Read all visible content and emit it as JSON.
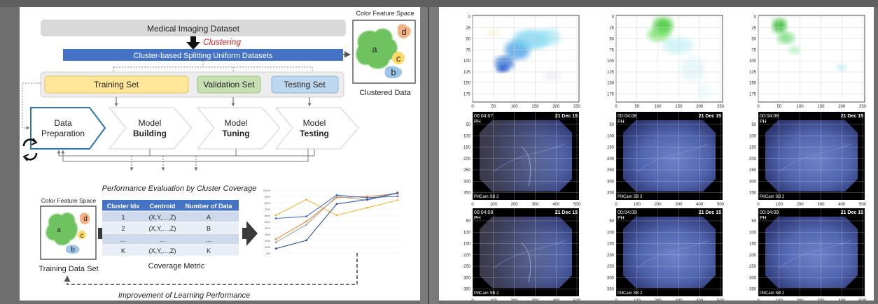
{
  "pipeline": {
    "dataset_label": "Medical Imaging Dataset",
    "clustering_label": "Clustering",
    "split_label": "Cluster-based Splitting Uniform Datasets",
    "training_set": "Training Set",
    "validation_set": "Validation Set",
    "testing_set": "Testing Set",
    "stages": [
      {
        "line1": "Data",
        "line2": "Preparation"
      },
      {
        "line1": "Model",
        "line2": "Building"
      },
      {
        "line1": "Model",
        "line2": "Tuning"
      },
      {
        "line1": "Model",
        "line2": "Testing"
      }
    ],
    "performance_label": "Performance Evaluation by Cluster Coverage",
    "improvement_label": "Improvement of Learning Performance"
  },
  "color_space_top": {
    "title": "Color Feature Space",
    "caption": "Clustered Data",
    "clusters": [
      "a",
      "b",
      "c",
      "d"
    ]
  },
  "color_space_bottom": {
    "title": "Color Feature Space",
    "caption": "Training Data Set",
    "clusters": [
      "a",
      "b",
      "c",
      "d"
    ]
  },
  "coverage_table": {
    "headers": [
      "Cluster Idx",
      "Centroid",
      "Number of Data"
    ],
    "rows": [
      [
        "1",
        "(X,Y,…,Z)",
        "A"
      ],
      [
        "2",
        "(X,Y,…,Z)",
        "B"
      ],
      [
        "…",
        "…",
        "…"
      ],
      [
        "K",
        "(X,Y,…,Z)",
        "K"
      ]
    ],
    "caption": "Coverage Metric"
  },
  "chart_data": {
    "type": "line",
    "title": "",
    "xlabel": "",
    "ylabel": "",
    "x": [
      1,
      2,
      3,
      4,
      5
    ],
    "ylim": [
      0,
      100
    ],
    "yticks": [
      "0%",
      "10%",
      "20%",
      "30%",
      "40%",
      "50%",
      "60%",
      "70%",
      "80%",
      "90%",
      "100%"
    ],
    "series": [
      {
        "color": "#f6b73c",
        "values": [
          60,
          85,
          60,
          72,
          84
        ]
      },
      {
        "color": "#ef8b3a",
        "values": [
          22,
          50,
          88,
          90,
          94
        ]
      },
      {
        "color": "#a5a5a5",
        "values": [
          17,
          45,
          90,
          84,
          95
        ]
      },
      {
        "color": "#4472c4",
        "values": [
          55,
          58,
          92,
          88,
          90
        ]
      },
      {
        "color": "#2f5597",
        "values": [
          7,
          20,
          78,
          85,
          96
        ]
      }
    ]
  },
  "plots": {
    "scatter_yticks": [
      "0",
      "25",
      "50",
      "75",
      "100",
      "125",
      "150",
      "175"
    ],
    "scatter_xticks": [
      "0",
      "50",
      "100",
      "150",
      "200",
      "250"
    ],
    "image_yticks": [
      "50",
      "100",
      "150",
      "200",
      "250",
      "300",
      "350"
    ],
    "image_xticks": [
      "0",
      "100",
      "200",
      "300",
      "400",
      "500"
    ],
    "image_frames": [
      {
        "time": "00:04:07",
        "date": "21 Dec 15",
        "tag": "PH",
        "brand": "PillCam SB 2"
      },
      {
        "time": "00:04:08",
        "date": "21 Dec 15",
        "tag": "PH",
        "brand": "PillCam SB 2"
      },
      {
        "time": "00:04:08",
        "date": "21 Dec 15",
        "tag": "PH",
        "brand": "PillCam SB 2"
      },
      {
        "time": "00:04:08",
        "date": "21 Dec 15",
        "tag": "PH",
        "brand": "PillCam SB 2"
      },
      {
        "time": "00:04:09",
        "date": "21 Dec 15",
        "tag": "PH",
        "brand": "PillCam SB 2"
      },
      {
        "time": "00:04:09",
        "date": "21 Dec 15",
        "tag": "PH",
        "brand": "PillCam SB 2"
      }
    ]
  }
}
